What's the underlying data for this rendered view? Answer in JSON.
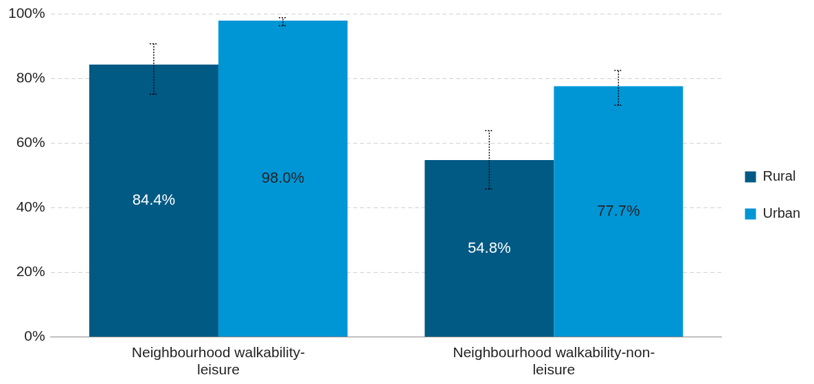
{
  "chart_data": {
    "type": "bar",
    "categories": [
      "Neighbourhood walkability-leisure",
      "Neighbourhood walkability-non-leisure"
    ],
    "series": [
      {
        "name": "Rural",
        "color": "#005a84",
        "values": [
          84.4,
          54.8
        ],
        "value_labels": [
          "84.4%",
          "54.8%"
        ],
        "errors": [
          [
            75.2,
            90.8
          ],
          [
            45.8,
            63.9
          ]
        ]
      },
      {
        "name": "Urban",
        "color": "#0096d6",
        "values": [
          98.0,
          77.7
        ],
        "value_labels": [
          "98.0%",
          "77.7%"
        ],
        "errors": [
          [
            96.4,
            98.9
          ],
          [
            71.8,
            82.6
          ]
        ]
      }
    ],
    "ylim": [
      0,
      100
    ],
    "yticks": [
      {
        "value": 0,
        "label": "0%"
      },
      {
        "value": 20,
        "label": "20%"
      },
      {
        "value": 40,
        "label": "40%"
      },
      {
        "value": 60,
        "label": "60%"
      },
      {
        "value": 80,
        "label": "80%"
      },
      {
        "value": 100,
        "label": "100%"
      }
    ],
    "grid": "y",
    "legend": "right"
  }
}
